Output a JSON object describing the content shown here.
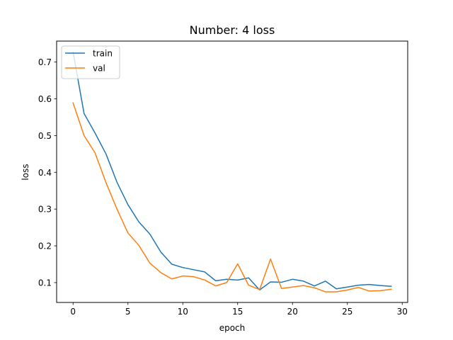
{
  "chart_data": {
    "type": "line",
    "title": "Number: 4 loss",
    "xlabel": "epoch",
    "ylabel": "loss",
    "xlim": [
      -1.5,
      30.5
    ],
    "ylim": [
      0.046,
      0.757
    ],
    "xticks": [
      0,
      5,
      10,
      15,
      20,
      25,
      30
    ],
    "yticks": [
      0.1,
      0.2,
      0.3,
      0.4,
      0.5,
      0.6,
      0.7
    ],
    "grid": false,
    "legend": "upper left",
    "x": [
      0,
      1,
      2,
      3,
      4,
      5,
      6,
      7,
      8,
      9,
      10,
      11,
      12,
      13,
      14,
      15,
      16,
      17,
      18,
      19,
      20,
      21,
      22,
      23,
      24,
      25,
      26,
      27,
      28,
      29
    ],
    "series": [
      {
        "name": "train",
        "color": "#1f77b4",
        "values": [
          0.727,
          0.56,
          0.507,
          0.45,
          0.373,
          0.312,
          0.265,
          0.232,
          0.183,
          0.15,
          0.141,
          0.135,
          0.129,
          0.105,
          0.109,
          0.107,
          0.113,
          0.08,
          0.102,
          0.101,
          0.109,
          0.104,
          0.091,
          0.104,
          0.083,
          0.088,
          0.093,
          0.095,
          0.092,
          0.09
        ]
      },
      {
        "name": "val",
        "color": "#ff7f0e",
        "values": [
          0.589,
          0.5,
          0.453,
          0.372,
          0.3,
          0.235,
          0.201,
          0.153,
          0.127,
          0.11,
          0.118,
          0.116,
          0.107,
          0.091,
          0.1,
          0.151,
          0.093,
          0.081,
          0.164,
          0.084,
          0.088,
          0.092,
          0.086,
          0.075,
          0.075,
          0.08,
          0.087,
          0.077,
          0.078,
          0.082
        ]
      }
    ]
  }
}
